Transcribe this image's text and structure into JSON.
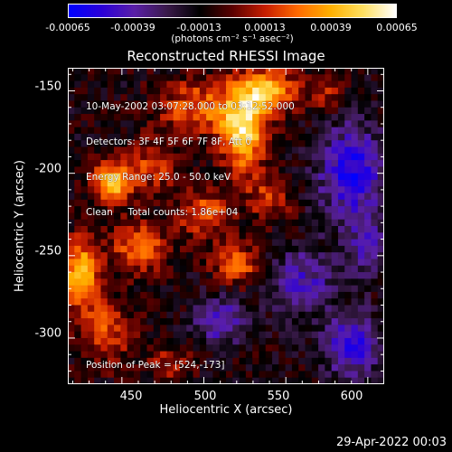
{
  "colorbar": {
    "tick_labels": [
      "-0.00065",
      "-0.00039",
      "-0.00013",
      "0.00013",
      "0.00039",
      "0.00065"
    ],
    "tick_values": [
      -0.00065,
      -0.00039,
      -0.00013,
      0.00013,
      0.00039,
      0.00065
    ],
    "range": [
      -0.00065,
      0.00065
    ],
    "units": "(photons cm⁻² s⁻¹ asec⁻²)",
    "colors": [
      "#0000ff",
      "#2b00d8",
      "#5a1fa8",
      "#3a1a4a",
      "#000000",
      "#5a0000",
      "#c81e00",
      "#ff6a00",
      "#ffb000",
      "#ffe060",
      "#ffffff"
    ]
  },
  "chart_data": {
    "type": "heatmap",
    "title": "Reconstructed RHESSI Image",
    "xlabel": "Heliocentric X (arcsec)",
    "ylabel": "Heliocentric Y (arcsec)",
    "xlim": [
      417,
      610
    ],
    "ylim": [
      -328,
      -136
    ],
    "xticks": [
      450,
      500,
      550,
      600
    ],
    "yticks": [
      -150,
      -200,
      -250,
      -300
    ],
    "peak": [
      524,
      -173
    ],
    "hotspots": [
      {
        "x": 524,
        "y": -173,
        "amp": 0.00065,
        "sx": 10,
        "sy": 18
      },
      {
        "x": 540,
        "y": -150,
        "amp": 0.0005,
        "sx": 12,
        "sy": 10
      },
      {
        "x": 495,
        "y": -160,
        "amp": 0.00035,
        "sx": 16,
        "sy": 12
      },
      {
        "x": 470,
        "y": -195,
        "amp": 0.0003,
        "sx": 10,
        "sy": 10
      },
      {
        "x": 445,
        "y": -205,
        "amp": 0.00055,
        "sx": 9,
        "sy": 9
      },
      {
        "x": 425,
        "y": -260,
        "amp": 0.00055,
        "sx": 8,
        "sy": 14
      },
      {
        "x": 460,
        "y": -245,
        "amp": 0.0004,
        "sx": 12,
        "sy": 10
      },
      {
        "x": 500,
        "y": -225,
        "amp": 0.00035,
        "sx": 12,
        "sy": 10
      },
      {
        "x": 520,
        "y": -255,
        "amp": 0.0004,
        "sx": 10,
        "sy": 8
      },
      {
        "x": 440,
        "y": -295,
        "amp": 0.0003,
        "sx": 12,
        "sy": 14
      },
      {
        "x": 575,
        "y": -150,
        "amp": 0.00025,
        "sx": 8,
        "sy": 8
      },
      {
        "x": 540,
        "y": -215,
        "amp": 0.00025,
        "sx": 10,
        "sy": 10
      },
      {
        "x": 480,
        "y": -315,
        "amp": 0.0002,
        "sx": 10,
        "sy": 8
      },
      {
        "x": 590,
        "y": -200,
        "amp": -0.00045,
        "sx": 14,
        "sy": 20
      },
      {
        "x": 590,
        "y": -305,
        "amp": -0.0004,
        "sx": 12,
        "sy": 14
      },
      {
        "x": 560,
        "y": -265,
        "amp": -0.0003,
        "sx": 14,
        "sy": 14
      },
      {
        "x": 510,
        "y": -290,
        "amp": -0.00035,
        "sx": 10,
        "sy": 10
      },
      {
        "x": 600,
        "y": -245,
        "amp": -0.0003,
        "sx": 8,
        "sy": 12
      }
    ]
  },
  "annotations": {
    "time_range": "10-May-2002 03:07:28.000 to 03:12:52.000",
    "detectors": "Detectors: 3F 4F 5F 6F 7F 8F, Att 0",
    "energy": "Energy Range: 25.0 - 50.0 keV",
    "clean": "Clean     Total counts: 1.86e+04",
    "peak_label": "Position of Peak = [524,-173]"
  },
  "footer": {
    "timestamp": "29-Apr-2022 00:03"
  }
}
